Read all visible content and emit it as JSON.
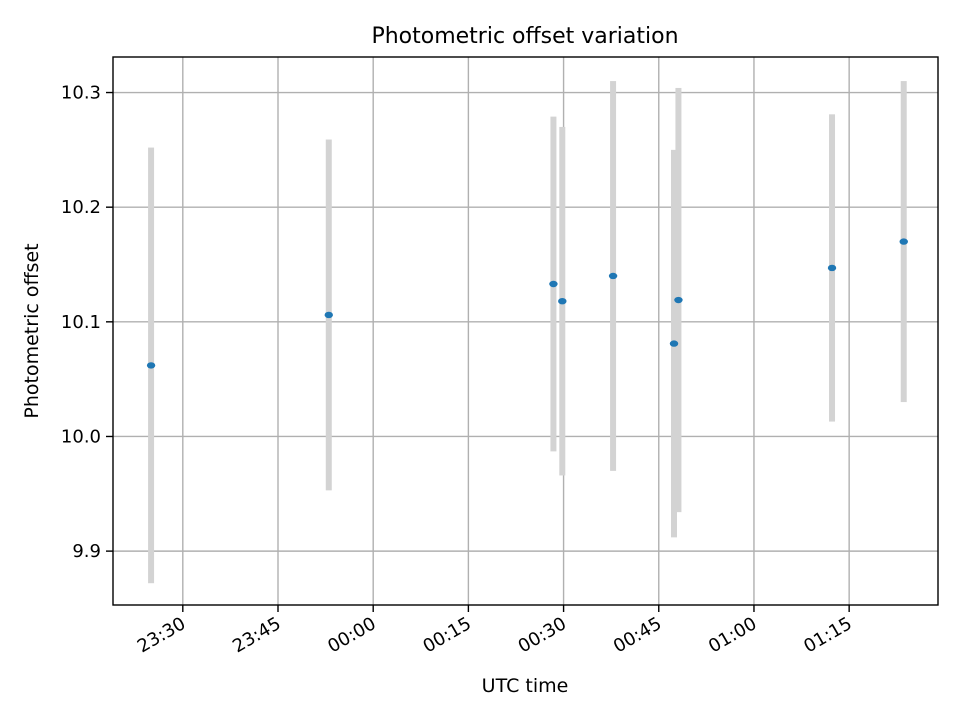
{
  "chart_data": {
    "type": "scatter",
    "title": "Photometric offset variation",
    "xlabel": "UTC time",
    "ylabel": "Photometric offset",
    "x_unit": "HH:MM UTC",
    "xlim": [
      "23:19",
      "01:29"
    ],
    "ylim": [
      9.853,
      10.331
    ],
    "grid": true,
    "legend": "none",
    "x_ticks": [
      "23:30",
      "23:45",
      "00:00",
      "00:15",
      "00:30",
      "00:45",
      "01:00",
      "01:15"
    ],
    "y_ticks": [
      9.9,
      10.0,
      10.1,
      10.2,
      10.3
    ],
    "y_tick_labels": [
      "9.9",
      "10.0",
      "10.1",
      "10.2",
      "10.3"
    ],
    "error_bar_color": "#d3d3d3",
    "point_color": "#1f77b4",
    "points": [
      {
        "time": "23:25:00",
        "y": 10.062,
        "err": 0.19
      },
      {
        "time": "23:53:00",
        "y": 10.106,
        "err": 0.153
      },
      {
        "time": "00:28:24",
        "y": 10.133,
        "err": 0.146
      },
      {
        "time": "00:29:48",
        "y": 10.118,
        "err": 0.152
      },
      {
        "time": "00:37:48",
        "y": 10.14,
        "err": 0.17
      },
      {
        "time": "00:47:24",
        "y": 10.081,
        "err": 0.169
      },
      {
        "time": "00:48:06",
        "y": 10.119,
        "err": 0.185
      },
      {
        "time": "01:12:18",
        "y": 10.147,
        "err": 0.134
      },
      {
        "time": "01:23:36",
        "y": 10.17,
        "err": 0.14
      }
    ]
  }
}
